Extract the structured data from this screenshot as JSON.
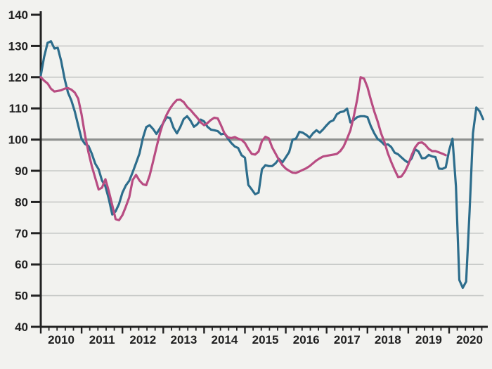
{
  "chart_data": {
    "type": "line",
    "title": "",
    "legend": "none",
    "grid": true,
    "baseline": {
      "value": 100
    },
    "y_axis": {
      "min": 40,
      "max": 140,
      "tick_step": 10,
      "tick_labels": [
        "40",
        "50",
        "60",
        "70",
        "80",
        "90",
        "100",
        "110",
        "120",
        "130",
        "140"
      ]
    },
    "x_axis": {
      "start_year": 2010,
      "end_year": 2021,
      "year_labels": [
        "2010",
        "2011",
        "2012",
        "2013",
        "2014",
        "2015",
        "2016",
        "2017",
        "2018",
        "2019",
        "2020"
      ],
      "minor_ticks_per_year": 4
    },
    "series": [
      {
        "name": "teal-series",
        "color": "#2d6d8c",
        "start_month": "2010-01",
        "frequency": "monthly",
        "values": [
          120.5,
          126.5,
          131.0,
          131.5,
          129.2,
          129.4,
          125.2,
          119.5,
          115.1,
          112.5,
          109.0,
          104.5,
          100.2,
          98.6,
          98.0,
          95.5,
          92.3,
          90.5,
          86.9,
          85.0,
          81.0,
          76.0,
          77.0,
          79.4,
          83.0,
          85.3,
          86.8,
          89.5,
          92.5,
          95.5,
          100.5,
          104.0,
          104.6,
          103.4,
          101.8,
          103.6,
          105.3,
          107.2,
          106.9,
          103.8,
          102.0,
          104.0,
          106.6,
          107.5,
          106.1,
          104.1,
          104.9,
          106.4,
          105.8,
          104.1,
          103.2,
          103.0,
          102.7,
          101.7,
          102.0,
          100.3,
          98.9,
          97.8,
          97.3,
          95.0,
          94.2,
          85.5,
          84.0,
          82.5,
          83.0,
          90.5,
          91.8,
          91.5,
          91.5,
          92.4,
          93.8,
          92.7,
          94.3,
          96.0,
          100.0,
          100.3,
          102.5,
          102.2,
          101.5,
          100.6,
          102.0,
          103.0,
          102.2,
          103.3,
          104.6,
          105.7,
          106.2,
          108.1,
          108.8,
          109.0,
          109.9,
          105.5,
          106.3,
          107.2,
          107.5,
          107.5,
          107.2,
          104.3,
          102.0,
          100.2,
          99.4,
          98.3,
          98.5,
          97.6,
          95.8,
          95.3,
          94.3,
          93.3,
          92.6,
          94.0,
          96.9,
          96.2,
          94.0,
          94.1,
          95.1,
          94.6,
          94.4,
          90.7,
          90.6,
          91.1,
          96.5,
          100.3,
          85.0,
          55.0,
          52.5,
          54.5,
          77.0,
          102.0,
          110.3,
          109.0,
          106.5
        ]
      },
      {
        "name": "pink-series",
        "color": "#b84c82",
        "start_month": "2010-01",
        "frequency": "monthly",
        "values": [
          120.0,
          118.9,
          118.0,
          116.3,
          115.4,
          115.6,
          115.8,
          116.3,
          116.5,
          116.0,
          115.1,
          113.1,
          108.0,
          101.5,
          96.0,
          91.5,
          87.7,
          84.0,
          84.6,
          87.3,
          83.5,
          79.0,
          74.5,
          74.2,
          75.8,
          78.5,
          81.5,
          87.0,
          88.7,
          86.9,
          85.7,
          85.4,
          88.5,
          93.0,
          97.5,
          102.0,
          105.5,
          108.0,
          110.0,
          111.5,
          112.7,
          112.8,
          112.0,
          110.5,
          109.5,
          108.2,
          107.0,
          105.5,
          104.6,
          105.3,
          106.3,
          107.0,
          106.8,
          104.5,
          102.0,
          100.7,
          100.5,
          100.8,
          100.3,
          99.9,
          98.9,
          97.0,
          95.4,
          95.2,
          96.2,
          99.5,
          100.9,
          100.4,
          97.5,
          95.5,
          93.5,
          91.8,
          90.7,
          90.0,
          89.4,
          89.3,
          89.8,
          90.3,
          90.8,
          91.5,
          92.4,
          93.3,
          94.0,
          94.6,
          94.8,
          95.0,
          95.2,
          95.4,
          96.3,
          97.8,
          100.3,
          103.0,
          107.5,
          113.0,
          120.0,
          119.5,
          116.8,
          112.8,
          109.0,
          105.8,
          102.0,
          99.2,
          95.6,
          92.8,
          90.3,
          88.0,
          88.2,
          89.8,
          92.0,
          95.0,
          97.5,
          98.9,
          99.1,
          98.3,
          97.0,
          96.3,
          96.3,
          95.9,
          95.5,
          95.0
        ]
      }
    ],
    "colors": {
      "background": "#f2f2ef",
      "grid": "#c7c9c7",
      "baseline": "#8f918f",
      "axis": "#222222",
      "label": "#1f1f1f"
    }
  }
}
